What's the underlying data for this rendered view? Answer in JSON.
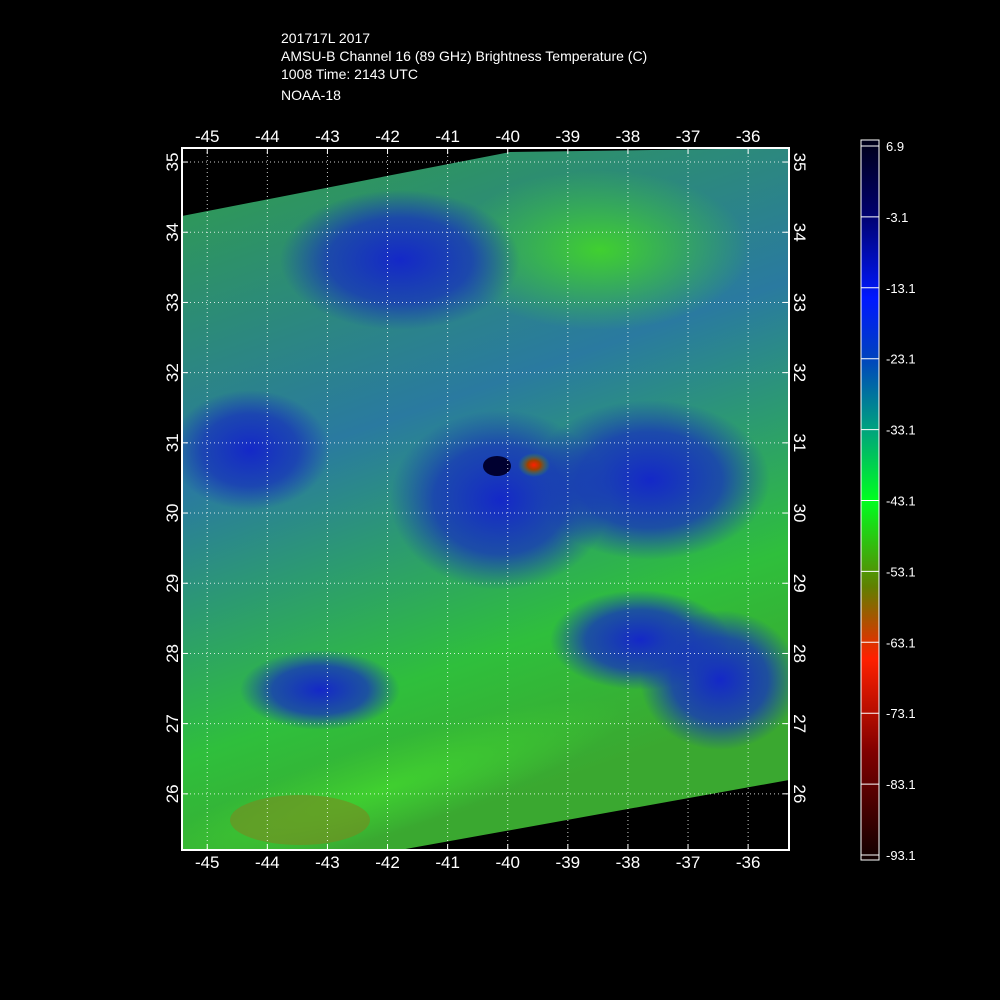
{
  "header": {
    "lines": [
      "201717L 2017",
      "AMSU-B Channel 16 (89 GHz) Brightness Temperature (C)",
      "1008 Time: 2143 UTC",
      "NOAA-18"
    ]
  },
  "map": {
    "lon_range": [
      -45.42,
      -35.32
    ],
    "lat_range": [
      25.2,
      35.2
    ],
    "lon_ticks": [
      -45,
      -44,
      -43,
      -42,
      -41,
      -40,
      -39,
      -38,
      -37,
      -36
    ],
    "lat_ticks": [
      26,
      27,
      28,
      29,
      30,
      31,
      32,
      33,
      34,
      35
    ]
  },
  "colorbar": {
    "ticks": [
      6.9,
      -3.1,
      -13.1,
      -23.1,
      -33.1,
      -43.1,
      -53.1,
      -63.1,
      -73.1,
      -83.1,
      -93.1
    ]
  }
}
